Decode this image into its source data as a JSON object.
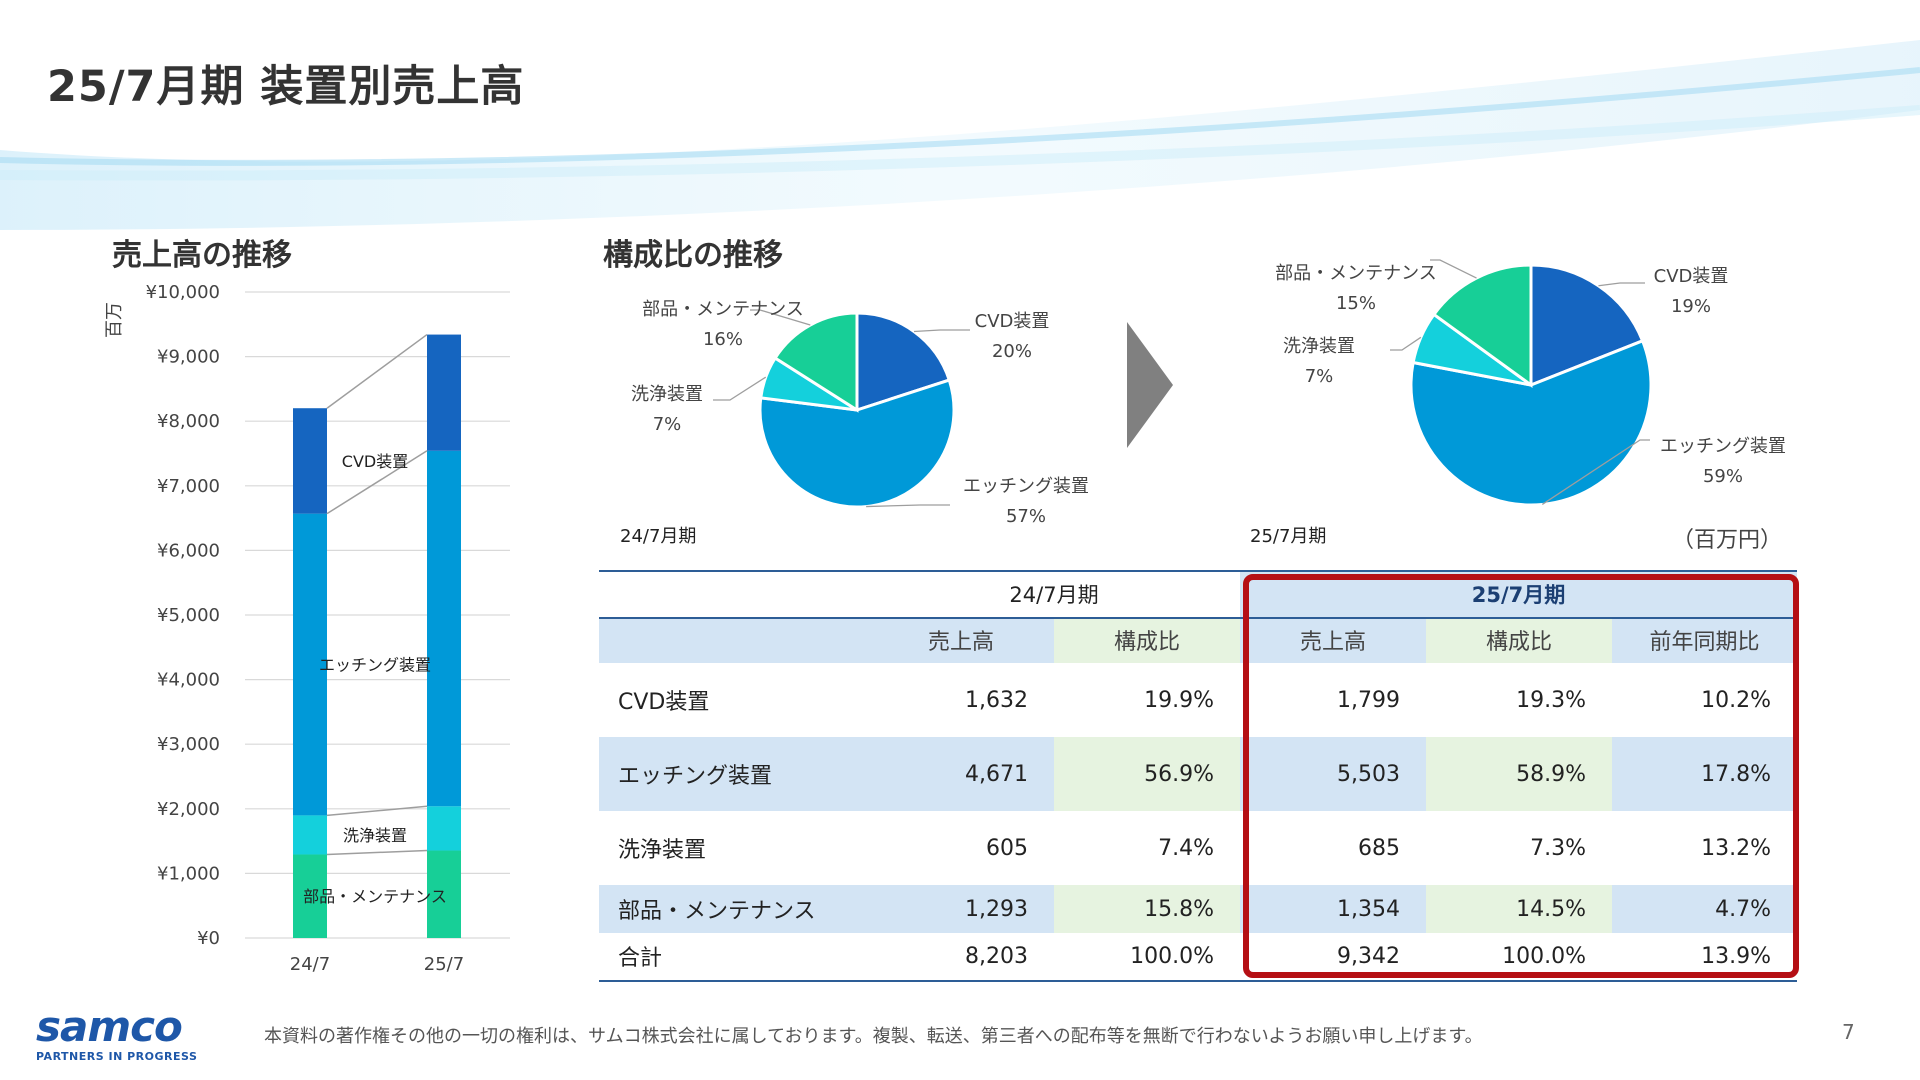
{
  "title": "25/7月期 装置別売上高",
  "left_section_title": "売上高の推移",
  "right_section_title": "構成比の推移",
  "unit_note": "（百万円）",
  "colors": {
    "cvd": "#1565c0",
    "etching": "#0099d8",
    "cleaning": "#14d0dc",
    "parts": "#17cf97",
    "highlight_border": "#b50f14",
    "table_blue": "#d3e4f4",
    "table_green": "#e6f3e0"
  },
  "chart_data": [
    {
      "type": "bar",
      "stacked": true,
      "ylabel": "百万",
      "ylim": [
        0,
        10000
      ],
      "yticks": [
        "¥0",
        "¥1,000",
        "¥2,000",
        "¥3,000",
        "¥4,000",
        "¥5,000",
        "¥6,000",
        "¥7,000",
        "¥8,000",
        "¥9,000",
        "¥10,000"
      ],
      "categories": [
        "24/7",
        "25/7"
      ],
      "series": [
        {
          "name": "部品・メンテナンス",
          "values": [
            1293,
            1354
          ]
        },
        {
          "name": "洗浄装置",
          "values": [
            605,
            685
          ]
        },
        {
          "name": "エッチング装置",
          "values": [
            4671,
            5503
          ]
        },
        {
          "name": "CVD装置",
          "values": [
            1632,
            1799
          ]
        }
      ]
    },
    {
      "type": "pie",
      "period": "24/7月期",
      "slices": [
        {
          "label": "CVD装置",
          "value": 20,
          "pct": "20%"
        },
        {
          "label": "エッチング装置",
          "value": 57,
          "pct": "57%"
        },
        {
          "label": "洗浄装置",
          "value": 7,
          "pct": "7%"
        },
        {
          "label": "部品・メンテナンス",
          "value": 16,
          "pct": "16%"
        }
      ]
    },
    {
      "type": "pie",
      "period": "25/7月期",
      "slices": [
        {
          "label": "CVD装置",
          "value": 19,
          "pct": "19%"
        },
        {
          "label": "エッチング装置",
          "value": 59,
          "pct": "59%"
        },
        {
          "label": "洗浄装置",
          "value": 7,
          "pct": "7%"
        },
        {
          "label": "部品・メンテナンス",
          "value": 15,
          "pct": "15%"
        }
      ]
    },
    {
      "type": "table",
      "period_prev": "24/7月期",
      "period_curr": "25/7月期",
      "headers": [
        "",
        "売上高",
        "構成比",
        "売上高",
        "構成比",
        "前年同期比"
      ],
      "rows": [
        [
          "CVD装置",
          "1,632",
          "19.9%",
          "1,799",
          "19.3%",
          "10.2%"
        ],
        [
          "エッチング装置",
          "4,671",
          "56.9%",
          "5,503",
          "58.9%",
          "17.8%"
        ],
        [
          "洗浄装置",
          "605",
          "7.4%",
          "685",
          "7.3%",
          "13.2%"
        ],
        [
          "部品・メンテナンス",
          "1,293",
          "15.8%",
          "1,354",
          "14.5%",
          "4.7%"
        ],
        [
          "合計",
          "8,203",
          "100.0%",
          "9,342",
          "100.0%",
          "13.9%"
        ]
      ]
    }
  ],
  "footer": {
    "logo_text": "samco",
    "logo_tagline": "PARTNERS IN PROGRESS",
    "disclaimer": "本資料の著作権その他の一切の権利は、サムコ株式会社に属しております。複製、転送、第三者への配布等を無断で行わないようお願い申し上げます。",
    "page_number": "7"
  }
}
